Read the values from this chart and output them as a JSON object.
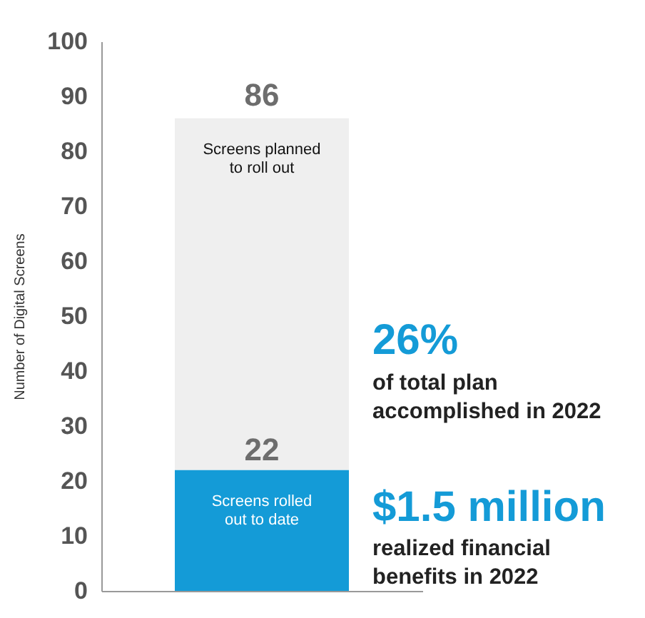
{
  "chart_data": {
    "type": "bar",
    "categories": [
      null
    ],
    "stacked": true,
    "series": [
      {
        "name": "Screens rolled\nout to date",
        "color": "#149bd7",
        "values": [
          22
        ],
        "value_labels": [
          "22"
        ]
      },
      {
        "name": "Screens planned\nto roll out",
        "color": "#efefef",
        "values": [
          64
        ]
      }
    ],
    "totals": [
      "86"
    ],
    "ylabel": "Number of Digital Screens",
    "ylim": [
      0,
      100
    ],
    "yticks": [
      0,
      10,
      20,
      30,
      40,
      50,
      60,
      70,
      80,
      90,
      100
    ],
    "tick_labels": "y",
    "grid": false,
    "legend": false,
    "annotations": [
      "26%",
      "of total plan\naccomplished in 2022",
      "$1.5 million",
      "realized financial\nbenefits in 2022"
    ]
  }
}
